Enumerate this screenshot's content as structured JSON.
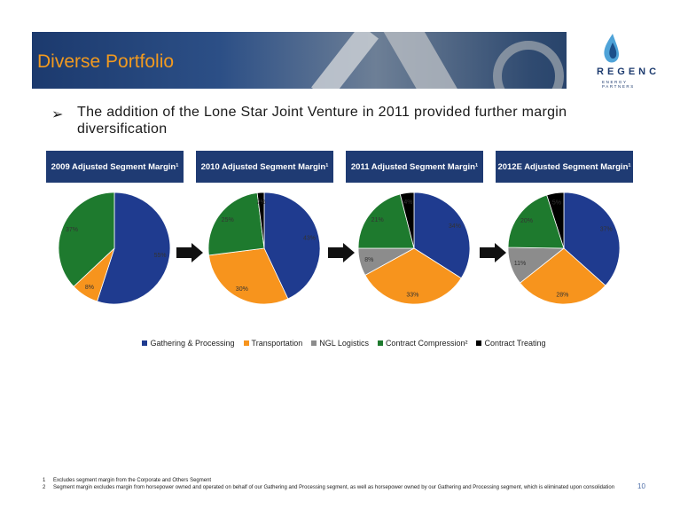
{
  "header": {
    "title": "Diverse Portfolio",
    "logo_name": "REGENCY",
    "logo_sub": "ENERGY PARTNERS"
  },
  "bullet": {
    "symbol": "➢",
    "text": "The addition of the Lone Star Joint Venture in 2011 provided further margin diversification"
  },
  "colors": {
    "gathering": "#1f3b8f",
    "transportation": "#f7941d",
    "ngl": "#8c8c8c",
    "compression": "#1e7a2e",
    "treating": "#000000",
    "header_bg": "#1f3b73"
  },
  "chart_data": [
    {
      "type": "pie",
      "title": "2009 Adjusted Segment Margin¹",
      "labels": [
        "Gathering & Processing",
        "Transportation",
        "NGL Logistics",
        "Contract Compression²",
        "Contract Treating"
      ],
      "values": [
        55,
        8,
        0,
        37,
        0
      ],
      "value_labels": [
        "55%",
        "8%",
        "",
        "37%",
        ""
      ]
    },
    {
      "type": "pie",
      "title": "2010 Adjusted Segment Margin¹",
      "labels": [
        "Gathering & Processing",
        "Transportation",
        "NGL Logistics",
        "Contract Compression²",
        "Contract Treating"
      ],
      "values": [
        43,
        30,
        0,
        25,
        2
      ],
      "value_labels": [
        "43%",
        "30%",
        "",
        "25%",
        "2%"
      ]
    },
    {
      "type": "pie",
      "title": "2011 Adjusted Segment Margin¹",
      "labels": [
        "Gathering & Processing",
        "Transportation",
        "NGL Logistics",
        "Contract Compression²",
        "Contract Treating"
      ],
      "values": [
        34,
        33,
        8,
        21,
        4
      ],
      "value_labels": [
        "34%",
        "33%",
        "8%",
        "21%",
        "4%"
      ]
    },
    {
      "type": "pie",
      "title": "2012E Adjusted Segment Margin¹",
      "labels": [
        "Gathering & Processing",
        "Transportation",
        "NGL Logistics",
        "Contract Compression²",
        "Contract Treating"
      ],
      "values": [
        37,
        28,
        11,
        20,
        5
      ],
      "value_labels": [
        "37%",
        "28%",
        "11%",
        "20%",
        "5%"
      ]
    }
  ],
  "legend": {
    "items": [
      "Gathering & Processing",
      "Transportation",
      "NGL Logistics",
      "Contract Compression²",
      "Contract Treating"
    ]
  },
  "footnotes": [
    {
      "num": "1",
      "text": "Excludes segment margin from the Corporate and Others Segment"
    },
    {
      "num": "2",
      "text": "Segment margin excludes margin from horsepower owned and operated on behalf of our Gathering and Processing segment, as well as horsepower owned by our Gathering and Processing segment, which is eliminated upon consolidation"
    }
  ],
  "page_number": "10"
}
